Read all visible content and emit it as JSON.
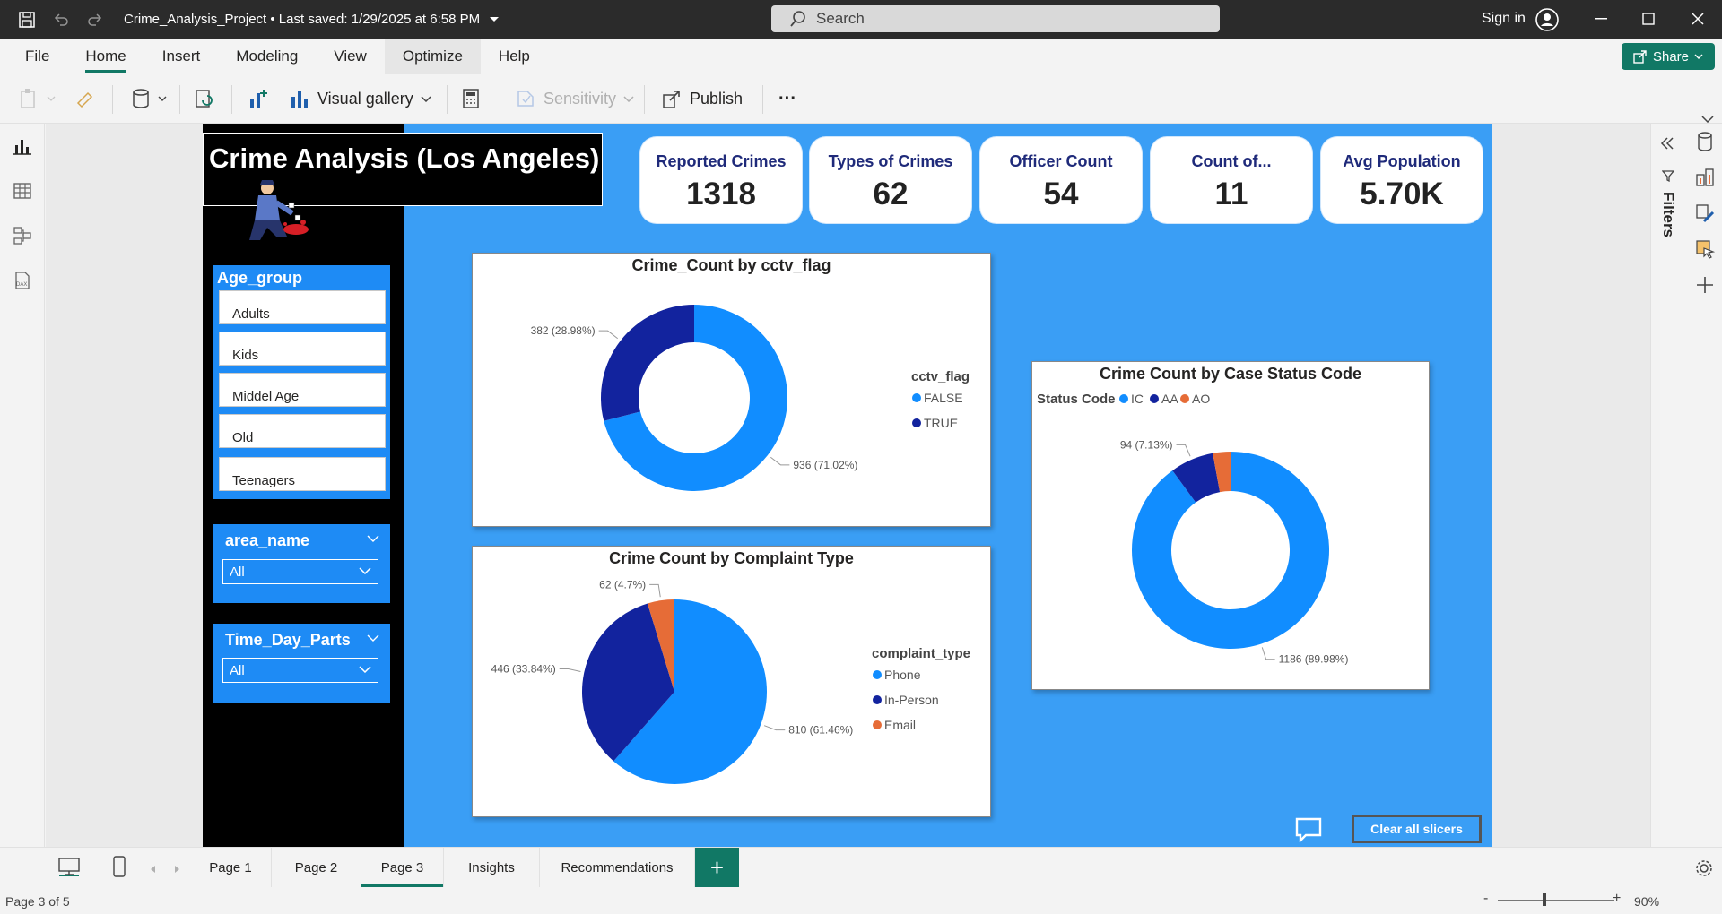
{
  "titlebar": {
    "title": "Crime_Analysis_Project • Last saved: 1/29/2025 at 6:58 PM",
    "search_placeholder": "Search",
    "signin": "Sign in"
  },
  "menu": {
    "items": [
      "File",
      "Home",
      "Insert",
      "Modeling",
      "View",
      "Optimize",
      "Help"
    ],
    "active": "Home",
    "share": "Share"
  },
  "ribbon": {
    "visual_gallery": "Visual gallery",
    "sensitivity": "Sensitivity",
    "publish": "Publish",
    "more": "···"
  },
  "report": {
    "title": "Crime Analysis (Los Angeles)",
    "kpis": [
      {
        "label": "Reported Crimes",
        "value": "1318"
      },
      {
        "label": "Types of Crimes",
        "value": "62"
      },
      {
        "label": "Officer Count",
        "value": "54"
      },
      {
        "label": "Count of...",
        "value": "11"
      },
      {
        "label": "Avg Population",
        "value": "5.70K"
      }
    ],
    "age_group": {
      "title": "Age_group",
      "items": [
        "Adults",
        "Kids",
        "Middel Age",
        "Old",
        "Teenagers"
      ]
    },
    "area_name": {
      "title": "area_name",
      "value": "All"
    },
    "time_day_parts": {
      "title": "Time_Day_Parts",
      "value": "All"
    },
    "clear_slicers": "Clear all slicers"
  },
  "chart_data": [
    {
      "type": "pie",
      "title": "Crime_Count by cctv_flag",
      "legend_title": "cctv_flag",
      "legend_position": "right",
      "donut": true,
      "slices": [
        {
          "name": "FALSE",
          "value": 936,
          "label": "936 (71.02%)",
          "color": "#118dff"
        },
        {
          "name": "TRUE",
          "value": 382,
          "label": "382 (28.98%)",
          "color": "#12239e"
        }
      ]
    },
    {
      "type": "pie",
      "title": "Crime Count by Complaint Type",
      "legend_title": "complaint_type",
      "legend_position": "right",
      "donut": false,
      "slices": [
        {
          "name": "Phone",
          "value": 810,
          "label": "810 (61.46%)",
          "color": "#118dff"
        },
        {
          "name": "In-Person",
          "value": 446,
          "label": "446 (33.84%)",
          "color": "#12239e"
        },
        {
          "name": "Email",
          "value": 62,
          "label": "62 (4.7%)",
          "color": "#e66c37"
        }
      ]
    },
    {
      "type": "pie",
      "title": "Crime Count by Case Status Code",
      "legend_title": "Status Code",
      "legend_position": "top-left",
      "donut": true,
      "slices": [
        {
          "name": "IC",
          "value": 1186,
          "label": "1186 (89.98%)",
          "color": "#118dff"
        },
        {
          "name": "AA",
          "value": 94,
          "label": "94 (7.13%)",
          "color": "#12239e"
        },
        {
          "name": "AO",
          "value": 38,
          "label": "",
          "color": "#e66c37"
        }
      ]
    }
  ],
  "pages": {
    "tabs": [
      "Page 1",
      "Page 2",
      "Page 3",
      "Insights",
      "Recommendations"
    ],
    "active": "Page 3",
    "add": "+"
  },
  "status": {
    "page_info": "Page 3 of 5",
    "zoom": "90%"
  },
  "side": {
    "filters": "Filters"
  }
}
